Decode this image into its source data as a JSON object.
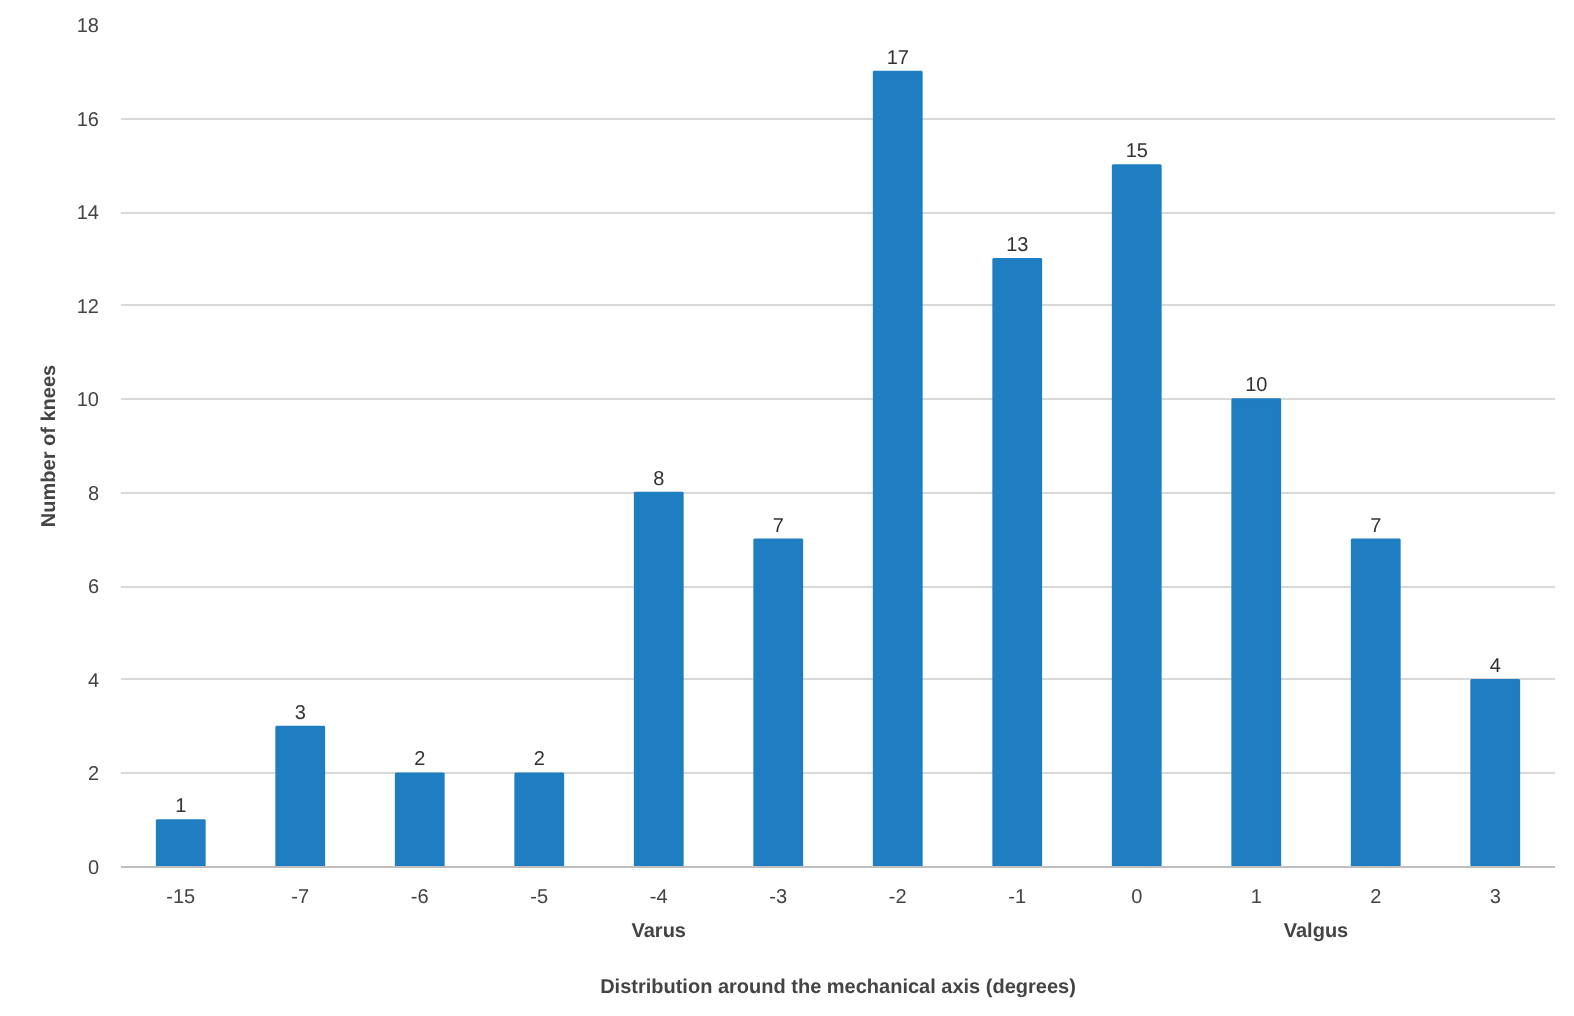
{
  "chart_data": {
    "type": "bar",
    "xlabel": "Distribution around the mechanical axis (degrees)",
    "ylabel": "Number of knees",
    "categories": [
      "-15",
      "-7",
      "-6",
      "-5",
      "-4",
      "-3",
      "-2",
      "-1",
      "0",
      "1",
      "2",
      "3"
    ],
    "values": [
      1,
      3,
      2,
      2,
      8,
      7,
      17,
      13,
      15,
      10,
      7,
      4
    ],
    "color": "#1f7ec1",
    "ylim": [
      0,
      18
    ],
    "yticks": [
      0,
      2,
      4,
      6,
      8,
      10,
      12,
      14,
      16,
      18
    ],
    "grid": "y",
    "data_labels": true,
    "annotations": [
      "Varus",
      "Valgus"
    ]
  }
}
